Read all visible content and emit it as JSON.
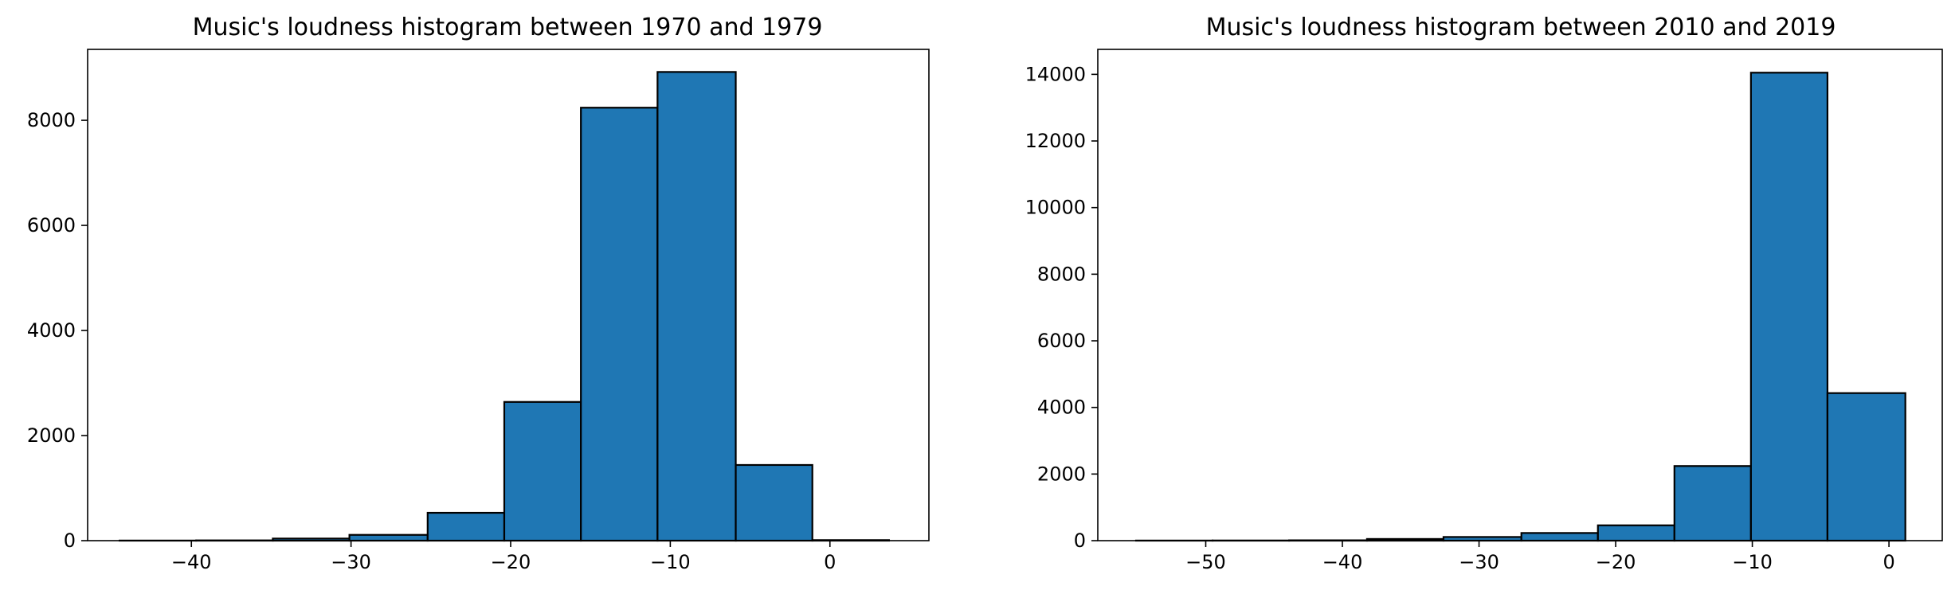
{
  "colors": {
    "bar_fill": "#1f77b4",
    "bar_edge": "#000000"
  },
  "chart_data": [
    {
      "type": "bar",
      "title": "Music's loudness histogram between 1970 and 1979",
      "xlabel": "",
      "ylabel": "",
      "grid": false,
      "xlim": [
        -46.5,
        6.2
      ],
      "ylim": [
        0,
        9350
      ],
      "xticks": [
        -40,
        -30,
        -20,
        -10,
        0
      ],
      "xtick_labels": [
        "−40",
        "−30",
        "−20",
        "−10",
        "0"
      ],
      "yticks": [
        0,
        2000,
        4000,
        6000,
        8000
      ],
      "ytick_labels": [
        "0",
        "2000",
        "4000",
        "6000",
        "8000"
      ],
      "bin_edges": [
        -44.5,
        -39.7,
        -34.9,
        -30.1,
        -25.2,
        -20.4,
        -15.6,
        -10.8,
        -5.9,
        -1.1,
        3.7
      ],
      "values": [
        2,
        5,
        40,
        110,
        530,
        2640,
        8240,
        8920,
        1440,
        10
      ]
    },
    {
      "type": "bar",
      "title": "Music's loudness histogram between 2010 and 2019",
      "xlabel": "",
      "ylabel": "",
      "grid": false,
      "xlim": [
        -57.9,
        3.9
      ],
      "ylim": [
        0,
        14750
      ],
      "xticks": [
        -50,
        -40,
        -30,
        -20,
        -10,
        0
      ],
      "xtick_labels": [
        "−50",
        "−40",
        "−30",
        "−20",
        "−10",
        "0"
      ],
      "yticks": [
        0,
        2000,
        4000,
        6000,
        8000,
        10000,
        12000,
        14000
      ],
      "ytick_labels": [
        "0",
        "2000",
        "4000",
        "6000",
        "8000",
        "10000",
        "12000",
        "14000"
      ],
      "bin_edges": [
        -55.1,
        -49.5,
        -43.9,
        -38.2,
        -32.6,
        -26.9,
        -21.3,
        -15.7,
        -10.1,
        -4.5,
        1.2
      ],
      "values": [
        3,
        5,
        10,
        50,
        110,
        230,
        460,
        2240,
        14050,
        4430
      ]
    }
  ]
}
